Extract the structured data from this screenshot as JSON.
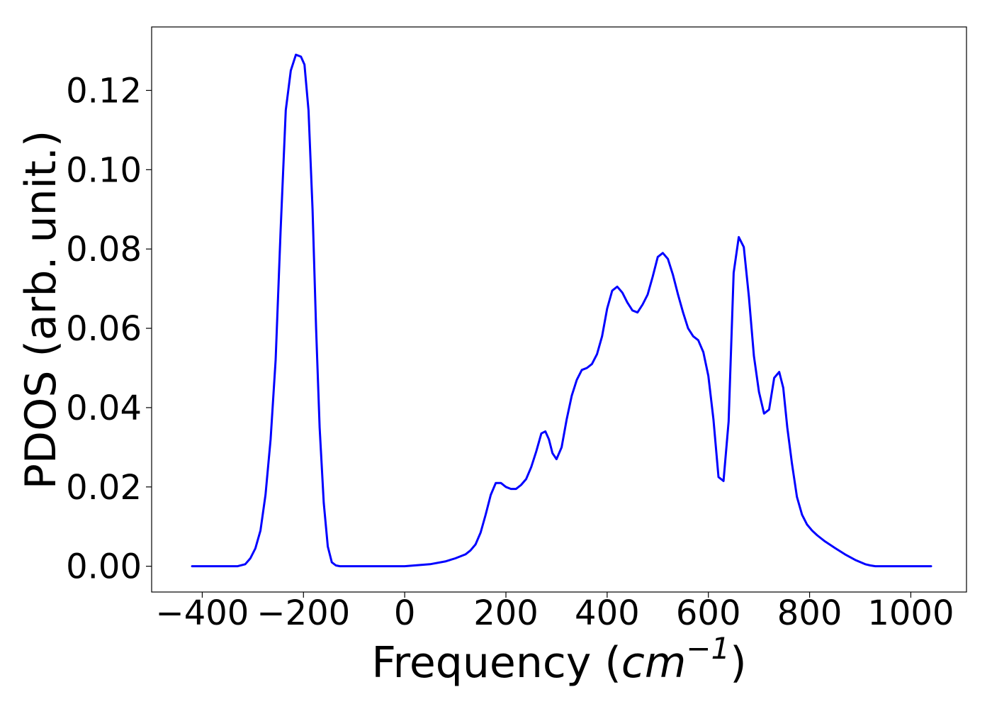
{
  "chart_data": {
    "type": "line",
    "title": "",
    "xlabel_text": "Frequency (",
    "xlabel_unit": "cm",
    "xlabel_exp": "−1",
    "xlabel_close": ")",
    "ylabel": "PDOS (arb. unit.)",
    "xlim": [
      -500,
      1110
    ],
    "ylim": [
      -0.0065,
      0.136
    ],
    "xticks": [
      -400,
      -200,
      0,
      200,
      400,
      600,
      800,
      1000
    ],
    "xtick_labels": [
      "−400",
      "−200",
      "0",
      "200",
      "400",
      "600",
      "800",
      "1000"
    ],
    "yticks": [
      0.0,
      0.02,
      0.04,
      0.06,
      0.08,
      0.1,
      0.12
    ],
    "ytick_labels": [
      "0.00",
      "0.02",
      "0.04",
      "0.06",
      "0.08",
      "0.10",
      "0.12"
    ],
    "grid": false,
    "line_color": "#0000ff",
    "series": [
      {
        "x": [
          -420,
          -330,
          -315,
          -305,
          -295,
          -285,
          -275,
          -265,
          -255,
          -245,
          -235,
          -225,
          -215,
          -205,
          -198,
          -190,
          -182,
          -175,
          -168,
          -160,
          -152,
          -144,
          -136,
          -128,
          -120,
          -100,
          0,
          50,
          80,
          100,
          120,
          130,
          140,
          150,
          160,
          170,
          180,
          190,
          200,
          210,
          220,
          230,
          240,
          250,
          260,
          270,
          278,
          285,
          292,
          300,
          310,
          320,
          330,
          340,
          350,
          360,
          370,
          380,
          390,
          400,
          410,
          420,
          430,
          440,
          450,
          460,
          470,
          480,
          490,
          500,
          510,
          520,
          530,
          540,
          550,
          560,
          570,
          580,
          590,
          600,
          610,
          620,
          630,
          640,
          650,
          660,
          670,
          680,
          690,
          700,
          710,
          720,
          730,
          740,
          748,
          756,
          765,
          775,
          785,
          795,
          805,
          815,
          830,
          850,
          870,
          890,
          910,
          920,
          930,
          940,
          1040
        ],
        "y": [
          0.0,
          0.0,
          0.0005,
          0.002,
          0.0045,
          0.009,
          0.018,
          0.032,
          0.052,
          0.085,
          0.115,
          0.125,
          0.129,
          0.1285,
          0.1265,
          0.115,
          0.09,
          0.06,
          0.035,
          0.016,
          0.005,
          0.001,
          0.0002,
          0.0,
          0.0,
          0.0,
          0.0,
          0.0005,
          0.0012,
          0.002,
          0.003,
          0.004,
          0.0055,
          0.0085,
          0.013,
          0.018,
          0.021,
          0.021,
          0.02,
          0.0195,
          0.0195,
          0.0205,
          0.022,
          0.025,
          0.029,
          0.0335,
          0.034,
          0.032,
          0.0285,
          0.027,
          0.03,
          0.037,
          0.043,
          0.047,
          0.0495,
          0.05,
          0.051,
          0.0535,
          0.058,
          0.065,
          0.0695,
          0.0705,
          0.069,
          0.0665,
          0.0645,
          0.064,
          0.066,
          0.0685,
          0.073,
          0.078,
          0.079,
          0.0775,
          0.0735,
          0.0685,
          0.064,
          0.06,
          0.058,
          0.057,
          0.054,
          0.048,
          0.037,
          0.0225,
          0.0215,
          0.0365,
          0.074,
          0.083,
          0.0805,
          0.068,
          0.053,
          0.044,
          0.0385,
          0.0395,
          0.0475,
          0.049,
          0.045,
          0.035,
          0.026,
          0.0175,
          0.013,
          0.0105,
          0.009,
          0.0078,
          0.0063,
          0.0046,
          0.003,
          0.0016,
          0.0005,
          0.0002,
          0.0,
          0.0,
          0.0
        ]
      }
    ]
  }
}
